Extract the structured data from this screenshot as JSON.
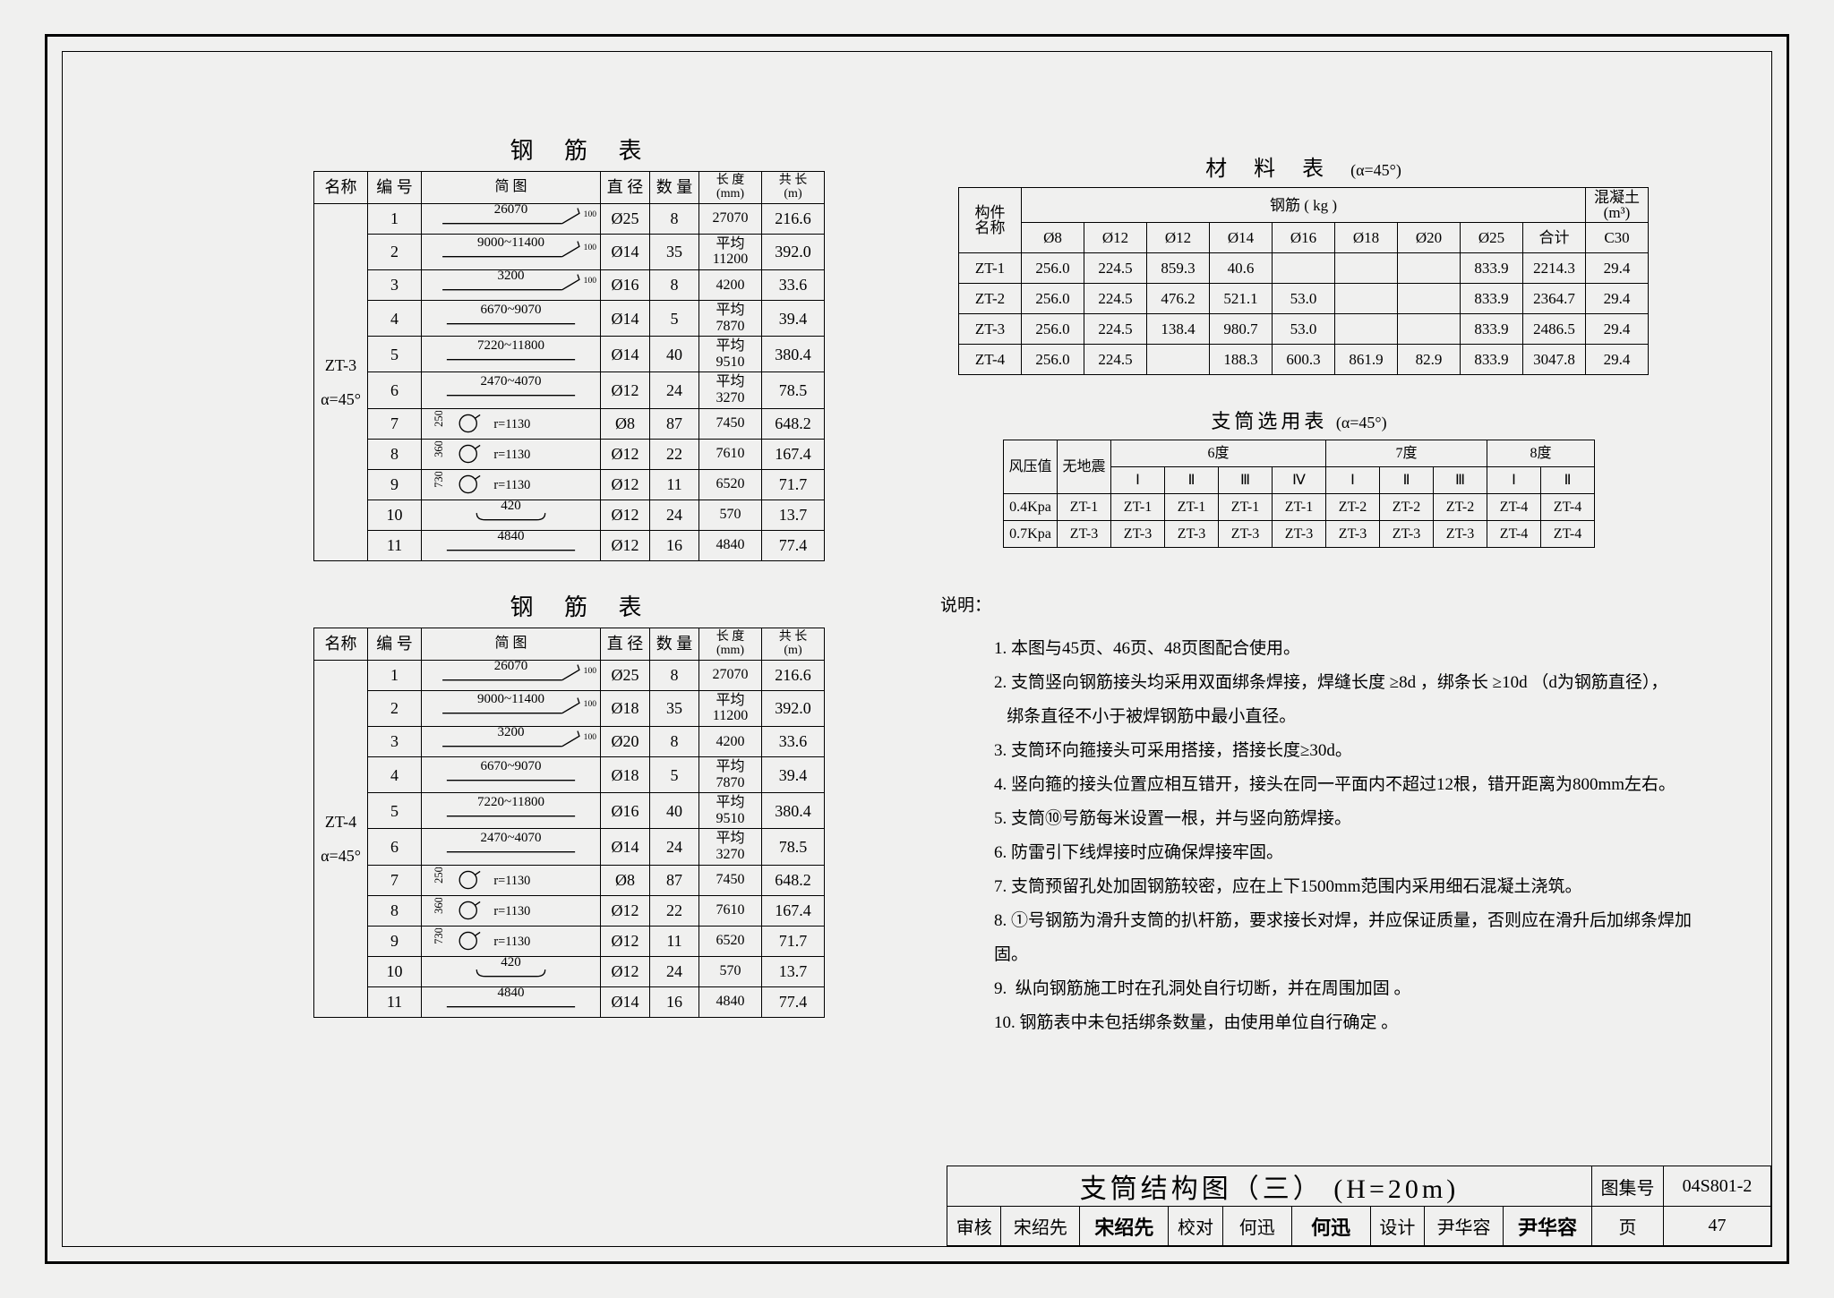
{
  "colors": {
    "line": "#000000",
    "bg": "#f0f0ef"
  },
  "rebar_table_1": {
    "title": "钢 筋 表",
    "headers": {
      "name": "名称",
      "num": "编 号",
      "diagram": "简    图",
      "diameter": "直 径",
      "qty": "数 量",
      "length": "长 度\n(mm)",
      "total": "共  长\n(m)"
    },
    "group_name": "ZT-3",
    "group_alpha": "α=45°",
    "rows": [
      {
        "num": "1",
        "diag_label": "26070",
        "diag_type": "hook-r",
        "dia": "Ø25",
        "qty": "8",
        "len": "27070",
        "tot": "216.6"
      },
      {
        "num": "2",
        "diag_label": "9000~11400",
        "diag_type": "hook-r",
        "dia": "Ø14",
        "qty": "35",
        "len": "平均\n11200",
        "tot": "392.0"
      },
      {
        "num": "3",
        "diag_label": "3200",
        "diag_type": "hook-r",
        "dia": "Ø16",
        "qty": "8",
        "len": "4200",
        "tot": "33.6"
      },
      {
        "num": "4",
        "diag_label": "6670~9070",
        "diag_type": "line",
        "dia": "Ø14",
        "qty": "5",
        "len": "平均\n7870",
        "tot": "39.4"
      },
      {
        "num": "5",
        "diag_label": "7220~11800",
        "diag_type": "line",
        "dia": "Ø14",
        "qty": "40",
        "len": "平均\n9510",
        "tot": "380.4"
      },
      {
        "num": "6",
        "diag_label": "2470~4070",
        "diag_type": "line",
        "dia": "Ø12",
        "qty": "24",
        "len": "平均\n3270",
        "tot": "78.5"
      },
      {
        "num": "7",
        "diag_label": "r=1130",
        "diag_prefix": "250",
        "diag_type": "ring",
        "dia": "Ø8",
        "qty": "87",
        "len": "7450",
        "tot": "648.2"
      },
      {
        "num": "8",
        "diag_label": "r=1130",
        "diag_prefix": "360",
        "diag_type": "ring",
        "dia": "Ø12",
        "qty": "22",
        "len": "7610",
        "tot": "167.4"
      },
      {
        "num": "9",
        "diag_label": "r=1130",
        "diag_prefix": "730",
        "diag_type": "ring",
        "dia": "Ø12",
        "qty": "11",
        "len": "6520",
        "tot": "71.7"
      },
      {
        "num": "10",
        "diag_label": "420",
        "diag_type": "stirrup",
        "dia": "Ø12",
        "qty": "24",
        "len": "570",
        "tot": "13.7"
      },
      {
        "num": "11",
        "diag_label": "4840",
        "diag_type": "line",
        "dia": "Ø12",
        "qty": "16",
        "len": "4840",
        "tot": "77.4"
      }
    ]
  },
  "rebar_table_2": {
    "title": "钢 筋 表",
    "group_name": "ZT-4",
    "group_alpha": "α=45°",
    "rows": [
      {
        "num": "1",
        "diag_label": "26070",
        "diag_type": "hook-r",
        "dia": "Ø25",
        "qty": "8",
        "len": "27070",
        "tot": "216.6"
      },
      {
        "num": "2",
        "diag_label": "9000~11400",
        "diag_type": "hook-r",
        "dia": "Ø18",
        "qty": "35",
        "len": "平均\n11200",
        "tot": "392.0"
      },
      {
        "num": "3",
        "diag_label": "3200",
        "diag_type": "hook-r",
        "dia": "Ø20",
        "qty": "8",
        "len": "4200",
        "tot": "33.6"
      },
      {
        "num": "4",
        "diag_label": "6670~9070",
        "diag_type": "line",
        "dia": "Ø18",
        "qty": "5",
        "len": "平均\n7870",
        "tot": "39.4"
      },
      {
        "num": "5",
        "diag_label": "7220~11800",
        "diag_type": "line",
        "dia": "Ø16",
        "qty": "40",
        "len": "平均\n9510",
        "tot": "380.4"
      },
      {
        "num": "6",
        "diag_label": "2470~4070",
        "diag_type": "line",
        "dia": "Ø14",
        "qty": "24",
        "len": "平均\n3270",
        "tot": "78.5"
      },
      {
        "num": "7",
        "diag_label": "r=1130",
        "diag_prefix": "250",
        "diag_type": "ring",
        "dia": "Ø8",
        "qty": "87",
        "len": "7450",
        "tot": "648.2"
      },
      {
        "num": "8",
        "diag_label": "r=1130",
        "diag_prefix": "360",
        "diag_type": "ring",
        "dia": "Ø12",
        "qty": "22",
        "len": "7610",
        "tot": "167.4"
      },
      {
        "num": "9",
        "diag_label": "r=1130",
        "diag_prefix": "730",
        "diag_type": "ring",
        "dia": "Ø12",
        "qty": "11",
        "len": "6520",
        "tot": "71.7"
      },
      {
        "num": "10",
        "diag_label": "420",
        "diag_type": "stirrup",
        "dia": "Ø12",
        "qty": "24",
        "len": "570",
        "tot": "13.7"
      },
      {
        "num": "11",
        "diag_label": "4840",
        "diag_type": "line",
        "dia": "Ø14",
        "qty": "16",
        "len": "4840",
        "tot": "77.4"
      }
    ]
  },
  "material_table": {
    "title": "材 料 表",
    "alpha": "(α=45°)",
    "headers": {
      "comp": "构件\n名称",
      "rebar_group": "钢筋   ( kg )",
      "conc": "混凝土\n(m³)",
      "d8": "Ø8",
      "d12": "Ø12",
      "d12b": "Ø12",
      "d14": "Ø14",
      "d16": "Ø16",
      "d18": "Ø18",
      "d20": "Ø20",
      "d25": "Ø25",
      "sum": "合计",
      "c30": "C30"
    },
    "rows": [
      {
        "name": "ZT-1",
        "v": [
          "256.0",
          "224.5",
          "859.3",
          "40.6",
          "",
          "",
          "",
          "833.9",
          "2214.3",
          "29.4"
        ]
      },
      {
        "name": "ZT-2",
        "v": [
          "256.0",
          "224.5",
          "476.2",
          "521.1",
          "53.0",
          "",
          "",
          "833.9",
          "2364.7",
          "29.4"
        ]
      },
      {
        "name": "ZT-3",
        "v": [
          "256.0",
          "224.5",
          "138.4",
          "980.7",
          "53.0",
          "",
          "",
          "833.9",
          "2486.5",
          "29.4"
        ]
      },
      {
        "name": "ZT-4",
        "v": [
          "256.0",
          "224.5",
          "",
          "188.3",
          "600.3",
          "861.9",
          "82.9",
          "833.9",
          "3047.8",
          "29.4"
        ]
      }
    ]
  },
  "selection_table": {
    "title": "支筒选用表",
    "alpha": "(α=45°)",
    "headers": {
      "wind": "风压值",
      "noeq": "无地震",
      "g6": "6度",
      "g7": "7度",
      "g8": "8度",
      "I": "Ⅰ",
      "II": "Ⅱ",
      "III": "Ⅲ",
      "IV": "Ⅳ"
    },
    "rows": [
      {
        "wind": "0.4Kpa",
        "noeq": "ZT-1",
        "v": [
          "ZT-1",
          "ZT-1",
          "ZT-1",
          "ZT-1",
          "ZT-2",
          "ZT-2",
          "ZT-2",
          "ZT-4",
          "ZT-4"
        ]
      },
      {
        "wind": "0.7Kpa",
        "noeq": "ZT-3",
        "v": [
          "ZT-3",
          "ZT-3",
          "ZT-3",
          "ZT-3",
          "ZT-3",
          "ZT-3",
          "ZT-3",
          "ZT-4",
          "ZT-4"
        ]
      }
    ]
  },
  "notes": {
    "head": "说明：",
    "items": [
      "1. 本图与45页、46页、48页图配合使用。",
      "2. 支筒竖向钢筋接头均采用双面绑条焊接，焊缝长度 ≥8d ，绑条长 ≥10d （d为钢筋直径），\n   绑条直径不小于被焊钢筋中最小直径。",
      "3. 支筒环向箍接头可采用搭接，搭接长度≥30d。",
      "4. 竖向箍的接头位置应相互错开，接头在同一平面内不超过12根，错开距离为800mm左右。",
      "5. 支筒⑩号筋每米设置一根，并与竖向筋焊接。",
      "6. 防雷引下线焊接时应确保焊接牢固。",
      "7. 支筒预留孔处加固钢筋较密，应在上下1500mm范围内采用细石混凝土浇筑。",
      "8. ①号钢筋为滑升支筒的扒杆筋，要求接长对焊，并应保证质量，否则应在滑升后加绑条焊加固。",
      "9.  纵向钢筋施工时在孔洞处自行切断，并在周围加固 。",
      "10. 钢筋表中未包括绑条数量，由使用单位自行确定 。"
    ]
  },
  "titleblock": {
    "main_title": "支筒结构图（三）   (H=20m)",
    "set_label": "图集号",
    "set_value": "04S801-2",
    "review_label": "审核",
    "review_name": "宋绍先",
    "review_sig": "宋绍先",
    "check_label": "校对",
    "check_name": "何迅",
    "check_sig": "何迅",
    "design_label": "设计",
    "design_name": "尹华容",
    "design_sig": "尹华容",
    "page_label": "页",
    "page_value": "47"
  }
}
